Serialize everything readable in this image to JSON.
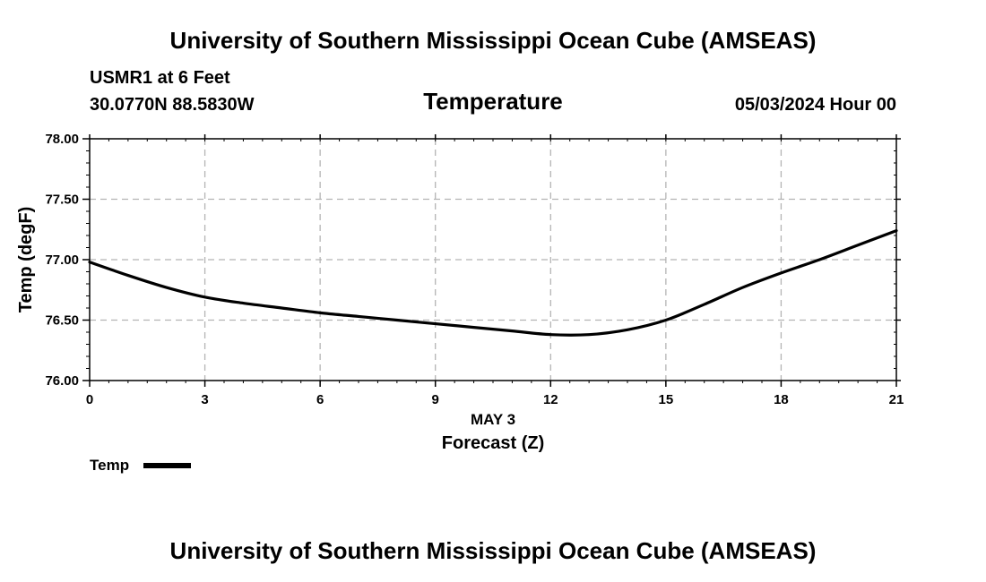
{
  "header": {
    "title_top": "University of Southern Mississippi Ocean Cube (AMSEAS)",
    "station": "USMR1 at 6 Feet",
    "coords": "30.0770N  88.5830W",
    "datetime": "05/03/2024 Hour 00"
  },
  "footer": {
    "title_bottom": "University of Southern Mississippi Ocean Cube (AMSEAS)"
  },
  "chart_data": {
    "type": "line",
    "title": "Temperature",
    "xlabel": "Forecast (Z)",
    "xsublabel": "MAY 3",
    "ylabel": "Temp (degF)",
    "xlim": [
      0,
      21
    ],
    "ylim": [
      76.0,
      78.0
    ],
    "xticks": [
      0,
      3,
      6,
      9,
      12,
      15,
      18,
      21
    ],
    "yticks": [
      76.0,
      76.5,
      77.0,
      77.5,
      78.0
    ],
    "ytick_labels": [
      "76.00",
      "76.50",
      "77.00",
      "77.50",
      "78.00"
    ],
    "grid": true,
    "legend": {
      "position": "bottom-left",
      "entries": [
        "Temp"
      ]
    },
    "series": [
      {
        "name": "Temp",
        "color": "#000000",
        "x": [
          0,
          1,
          2,
          3,
          4,
          5,
          6,
          7,
          8,
          9,
          10,
          11,
          12,
          13,
          14,
          15,
          16,
          17,
          18,
          19,
          20,
          21
        ],
        "values": [
          76.98,
          76.87,
          76.77,
          76.69,
          76.64,
          76.6,
          76.56,
          76.53,
          76.5,
          76.47,
          76.44,
          76.41,
          76.38,
          76.38,
          76.42,
          76.5,
          76.63,
          76.77,
          76.89,
          77.0,
          77.12,
          77.24
        ]
      }
    ]
  }
}
